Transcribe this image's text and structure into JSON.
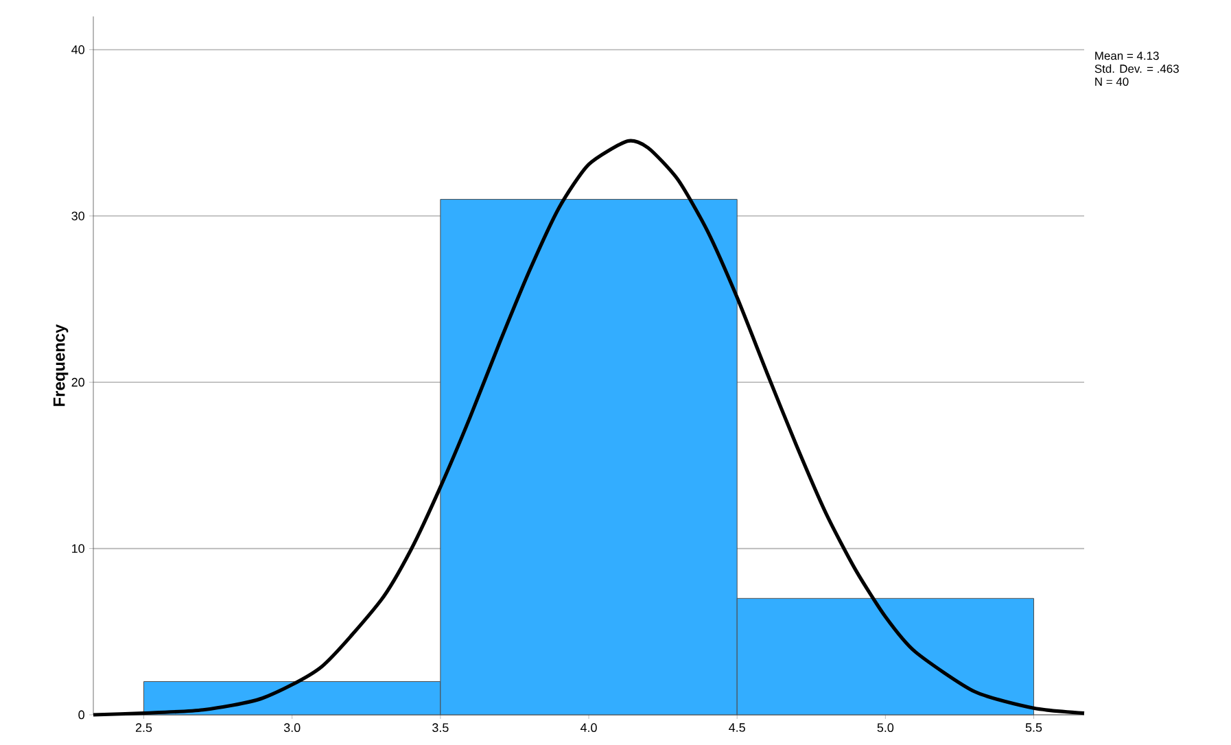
{
  "chart_data": {
    "type": "histogram",
    "ylabel": "Frequency",
    "annotations": [
      "Mean = 4.13",
      "Std. Dev. = .463",
      "N = 40"
    ],
    "series": [
      {
        "bins": [
          2.5,
          3.5,
          4.5,
          5.5
        ],
        "values": [
          2,
          31,
          7
        ],
        "color": "#33adff"
      },
      {
        "type": "line",
        "color": "#000000",
        "x": [
          2.33,
          2.5,
          2.7,
          2.9,
          3.1,
          3.3,
          3.4,
          3.5,
          3.6,
          3.7,
          3.8,
          3.9,
          4.0,
          4.13,
          4.2,
          4.3,
          4.4,
          4.5,
          4.6,
          4.7,
          4.8,
          4.9,
          5.0,
          5.1,
          5.3,
          5.5,
          5.67
        ],
        "values": [
          0.0,
          0.1,
          0.3,
          1.0,
          2.9,
          6.9,
          9.9,
          13.7,
          17.9,
          22.4,
          26.7,
          30.5,
          33.1,
          34.5,
          34.1,
          32.2,
          29.1,
          25.1,
          20.6,
          16.2,
          12.1,
          8.7,
          5.9,
          3.8,
          1.4,
          0.4,
          0.1
        ]
      }
    ],
    "xlim": [
      2.33,
      5.67
    ],
    "ylim": [
      0,
      42
    ],
    "xticks": [
      2.5,
      {
        "value": 3,
        "label": "3.0"
      },
      3.5,
      {
        "value": 4,
        "label": "4.0"
      },
      4.5,
      {
        "value": 5,
        "label": "5.0"
      },
      5.5
    ],
    "yticks": [
      0,
      10,
      20,
      30,
      40
    ],
    "grid": "y"
  }
}
